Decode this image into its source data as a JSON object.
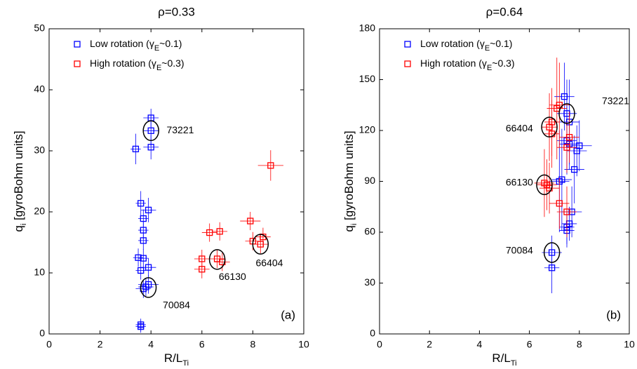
{
  "chart_data": [
    {
      "type": "scatter",
      "title": "ρ=0.33",
      "xlabel": [
        "R/L",
        "Ti"
      ],
      "ylabel": [
        "q",
        "i",
        " [gyroBohm units]"
      ],
      "panel_label": "(a)",
      "xlim": [
        0,
        10
      ],
      "ylim": [
        0,
        50
      ],
      "xticks": [
        0,
        2,
        4,
        6,
        8,
        10
      ],
      "yticks": [
        0,
        10,
        20,
        30,
        40,
        50
      ],
      "series": [
        {
          "name": [
            "Low rotation (γ",
            "E",
            "~0.1)"
          ],
          "color": "#0000ff",
          "x": [
            4.0,
            4.0,
            3.4,
            4.0,
            3.6,
            3.9,
            3.7,
            3.7,
            3.7,
            3.5,
            3.7,
            3.6,
            3.9,
            3.9,
            3.8,
            3.7,
            3.6,
            3.6
          ],
          "values": [
            35.4,
            33.3,
            30.3,
            30.6,
            21.4,
            20.3,
            18.9,
            17.0,
            15.3,
            12.5,
            12.4,
            10.4,
            10.9,
            8.1,
            7.7,
            7.4,
            1.5,
            1.2
          ],
          "xerr": [
            0.3,
            0.3,
            0.2,
            0.3,
            0.2,
            0.3,
            0.2,
            0.2,
            0.2,
            0.2,
            0.2,
            0.2,
            0.3,
            0.4,
            0.3,
            0.3,
            0.2,
            0.2
          ],
          "yerr": [
            1.5,
            2.5,
            2.5,
            2.0,
            2.0,
            2.0,
            1.5,
            1.5,
            1.5,
            1.5,
            1.5,
            1.5,
            1.5,
            1.5,
            1.5,
            1.5,
            1.0,
            1.0
          ]
        },
        {
          "name": [
            "High rotation (γ",
            "E",
            "~0.3)"
          ],
          "color": "#ff0000",
          "x": [
            8.7,
            7.9,
            6.3,
            6.7,
            8.4,
            8.0,
            8.3,
            6.0,
            6.6,
            6.8,
            6.0
          ],
          "values": [
            27.6,
            18.5,
            16.6,
            16.8,
            15.9,
            15.2,
            14.7,
            12.3,
            12.3,
            11.8,
            10.6
          ],
          "xerr": [
            0.5,
            0.4,
            0.3,
            0.3,
            0.3,
            0.3,
            0.3,
            0.3,
            0.3,
            0.3,
            0.3
          ],
          "yerr": [
            2.5,
            1.5,
            1.5,
            1.5,
            1.5,
            1.5,
            1.5,
            1.5,
            1.5,
            1.5,
            1.5
          ]
        }
      ],
      "annotations": [
        {
          "text": "73221",
          "x": 4.0,
          "y": 33.3,
          "text_x": 5.15,
          "text_y": 33.3
        },
        {
          "text": "66130",
          "x": 6.6,
          "y": 12.2,
          "text_x": 7.2,
          "text_y": 9.3
        },
        {
          "text": "66404",
          "x": 8.3,
          "y": 14.7,
          "text_x": 8.65,
          "text_y": 11.5
        },
        {
          "text": "70084",
          "x": 3.9,
          "y": 7.6,
          "text_x": 5.0,
          "text_y": 4.6
        }
      ]
    },
    {
      "type": "scatter",
      "title": "ρ=0.64",
      "xlabel": [
        "R/L",
        "Ti"
      ],
      "ylabel": [
        "q",
        "i",
        " [gyroBohm units]"
      ],
      "panel_label": "(b)",
      "xlim": [
        0,
        10
      ],
      "ylim": [
        0,
        180
      ],
      "xticks": [
        0,
        2,
        4,
        6,
        8,
        10
      ],
      "yticks": [
        0,
        30,
        60,
        90,
        120,
        150,
        180
      ],
      "series": [
        {
          "name": [
            "Low rotation (γ",
            "E",
            "~0.1)"
          ],
          "color": "#0000ff",
          "x": [
            7.4,
            7.5,
            7.6,
            7.5,
            7.6,
            8.0,
            7.9,
            7.8,
            7.3,
            7.2,
            7.7,
            7.6,
            7.5,
            7.5,
            6.9,
            6.9
          ],
          "values": [
            140,
            130,
            125,
            114,
            112,
            111,
            108,
            97,
            91,
            90,
            72,
            65,
            63,
            61,
            48,
            39
          ],
          "xerr": [
            0.4,
            0.4,
            0.4,
            0.4,
            0.4,
            0.5,
            0.4,
            0.4,
            0.4,
            0.4,
            0.4,
            0.3,
            0.3,
            0.3,
            0.4,
            0.3
          ],
          "yerr": [
            20,
            20,
            25,
            20,
            15,
            15,
            15,
            20,
            30,
            30,
            15,
            10,
            10,
            10,
            10,
            15
          ]
        },
        {
          "name": [
            "High rotation (γ",
            "E",
            "~0.3)"
          ],
          "color": "#ff0000",
          "x": [
            7.2,
            7.1,
            6.9,
            6.8,
            6.9,
            7.6,
            7.5,
            6.6,
            6.7,
            6.8,
            7.2,
            7.5
          ],
          "values": [
            135,
            133,
            125,
            122,
            118,
            116,
            110,
            89,
            88,
            86,
            77,
            72
          ],
          "xerr": [
            0.4,
            0.4,
            0.3,
            0.3,
            0.3,
            0.4,
            0.4,
            0.4,
            0.4,
            0.4,
            0.4,
            0.4
          ],
          "yerr": [
            25,
            30,
            20,
            20,
            20,
            15,
            15,
            20,
            15,
            15,
            15,
            15
          ]
        }
      ],
      "annotations": [
        {
          "text": "73221",
          "x": 7.5,
          "y": 130,
          "text_x": 9.45,
          "text_y": 137
        },
        {
          "text": "66404",
          "x": 6.8,
          "y": 122,
          "text_x": 5.6,
          "text_y": 121
        },
        {
          "text": "66130",
          "x": 6.6,
          "y": 88,
          "text_x": 5.6,
          "text_y": 89
        },
        {
          "text": "70084",
          "x": 6.9,
          "y": 48,
          "text_x": 5.6,
          "text_y": 49
        }
      ]
    }
  ]
}
